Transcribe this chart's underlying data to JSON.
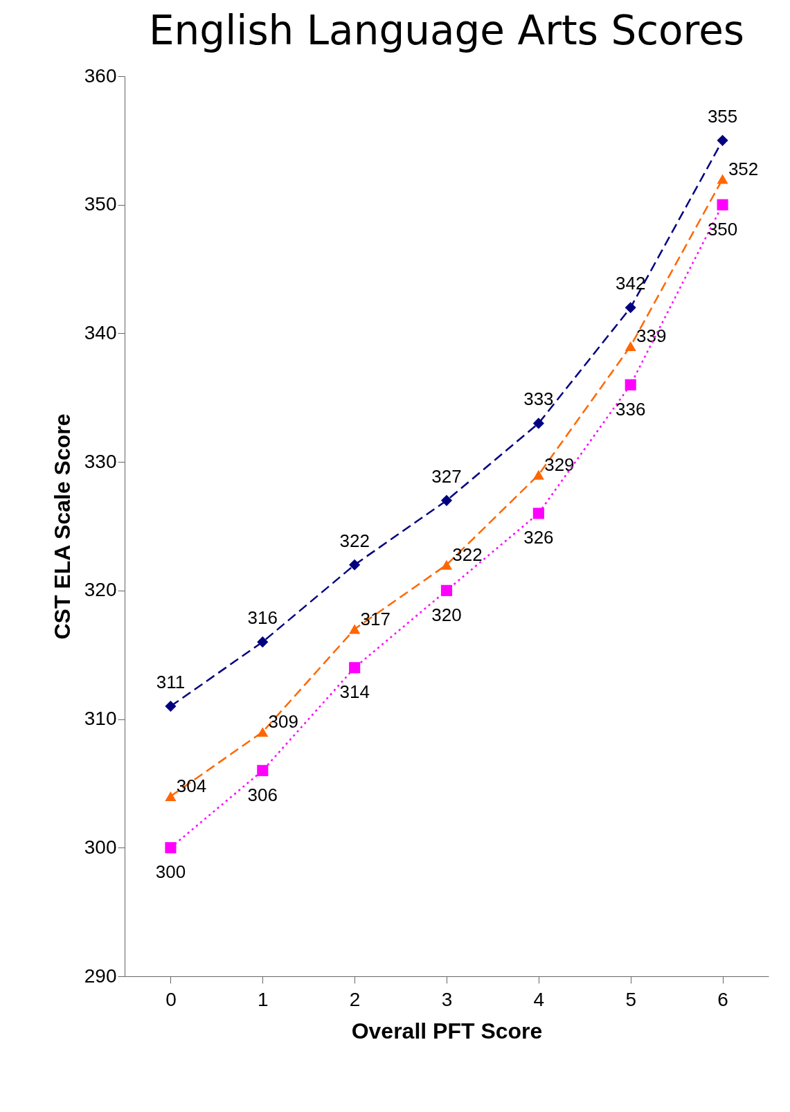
{
  "chart_data": {
    "type": "line",
    "title": "English Language Arts Scores",
    "xlabel": "Overall PFT Score",
    "ylabel": "CST ELA Scale Score",
    "categories": [
      "0",
      "1",
      "2",
      "3",
      "4",
      "5",
      "6"
    ],
    "series": [
      {
        "color": "#000080",
        "marker": "diamond",
        "line_style": "dashed",
        "values": [
          311,
          316,
          322,
          327,
          333,
          342,
          355
        ]
      },
      {
        "color": "#ff6600",
        "marker": "triangle",
        "line_style": "dashed",
        "values": [
          304,
          309,
          317,
          322,
          329,
          339,
          352
        ]
      },
      {
        "color": "#ff00ff",
        "marker": "square",
        "line_style": "dotted",
        "values": [
          300,
          306,
          314,
          320,
          326,
          336,
          350
        ]
      }
    ],
    "ylim": [
      290,
      360
    ],
    "yticks": [
      290,
      300,
      310,
      320,
      330,
      340,
      350,
      360
    ],
    "data_labels": true,
    "grid": false
  }
}
